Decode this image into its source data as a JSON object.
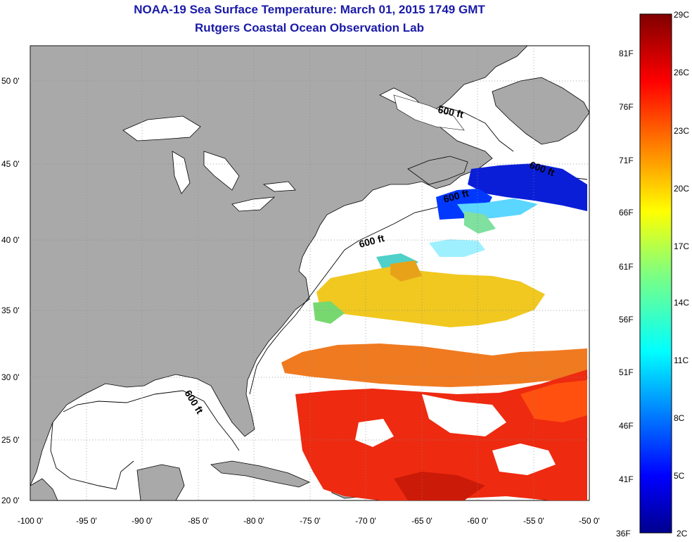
{
  "title_line1": "NOAA-19 Sea Surface Temperature:  March 01, 2015 1749 GMT",
  "title_line2": "Rutgers Coastal Ocean Observation Lab",
  "latitude_ticks": [
    "50 0'",
    "45 0'",
    "40 0'",
    "35 0'",
    "30 0'",
    "25 0'",
    "20 0'"
  ],
  "longitude_ticks": [
    "-100 0'",
    "-95 0'",
    "-90 0'",
    "-85 0'",
    "-80 0'",
    "-75 0'",
    "-70 0'",
    "-65 0'",
    "-60 0'",
    "-55 0'",
    "-50 0'"
  ],
  "contour_label": "600 ft",
  "colorbar": {
    "celsius": [
      "29C",
      "26C",
      "23C",
      "20C",
      "17C",
      "14C",
      "11C",
      "8C",
      "5C",
      "2C"
    ],
    "fahrenheit": [
      "81F",
      "76F",
      "71F",
      "66F",
      "61F",
      "56F",
      "51F",
      "46F",
      "41F",
      "36F"
    ]
  },
  "colors": {
    "land": "#a9a9a9",
    "ocean_no_data": "#ffffff",
    "title": "#1a1aa8"
  }
}
